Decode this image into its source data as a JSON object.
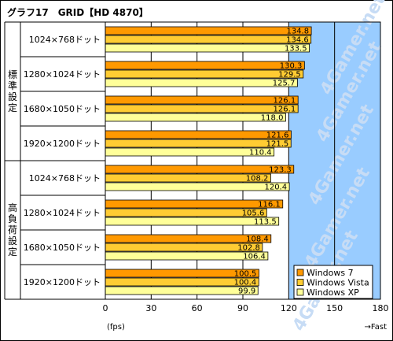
{
  "title": "グラフ17　GRID【HD 4870】",
  "chart_data": {
    "type": "bar",
    "orientation": "horizontal",
    "title": "グラフ17　GRID【HD 4870】",
    "xlim": [
      0,
      180
    ],
    "xticks": [
      0,
      30,
      60,
      90,
      120,
      150,
      180
    ],
    "unit_label": "(fps)",
    "direction_label": "→Fast",
    "groups": [
      "標準設定",
      "高負荷設定"
    ],
    "categories": [
      "1024×768ドット",
      "1280×1024ドット",
      "1680×1050ドット",
      "1920×1200ドット",
      "1024×768ドット",
      "1280×1024ドット",
      "1680×1050ドット",
      "1920×1200ドット"
    ],
    "series": [
      {
        "name": "Windows 7",
        "color": "#ff9900",
        "values": [
          134.8,
          130.3,
          126.1,
          121.6,
          123.3,
          116.1,
          108.4,
          100.5
        ]
      },
      {
        "name": "Windows Vista",
        "color": "#ffcc33",
        "values": [
          134.6,
          129.5,
          126.1,
          121.5,
          108.2,
          105.6,
          102.8,
          100.4
        ]
      },
      {
        "name": "Windows XP",
        "color": "#ffff99",
        "values": [
          133.5,
          125.7,
          118.0,
          110.4,
          120.4,
          113.5,
          106.4,
          99.9
        ]
      }
    ],
    "shaded_region": {
      "from": 120,
      "to": 180,
      "color": "#99ccff"
    },
    "legend_position": "bottom-right",
    "grid": true
  }
}
